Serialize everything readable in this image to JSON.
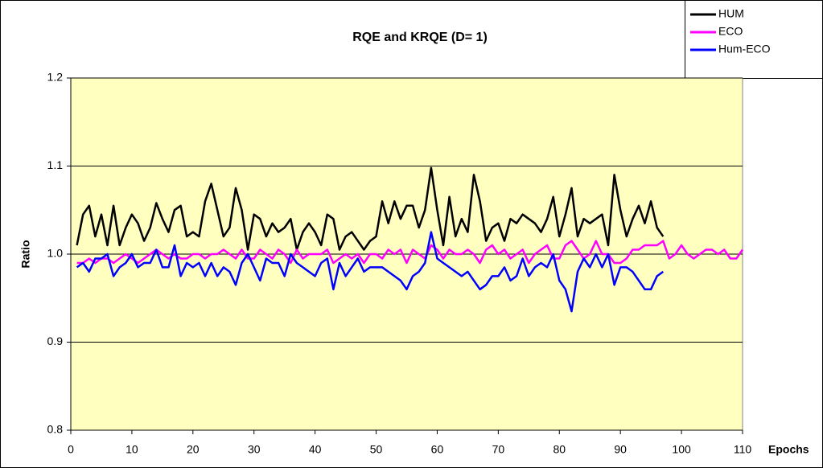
{
  "chart_data": {
    "type": "line",
    "title": "RQE and KRQE  (D= 1)",
    "x_label": "Epochs",
    "y_label": "Ratio",
    "x": [
      1,
      2,
      3,
      4,
      5,
      6,
      7,
      8,
      9,
      10,
      11,
      12,
      13,
      14,
      15,
      16,
      17,
      18,
      19,
      20,
      21,
      22,
      23,
      24,
      25,
      26,
      27,
      28,
      29,
      30,
      31,
      32,
      33,
      34,
      35,
      36,
      37,
      38,
      39,
      40,
      41,
      42,
      43,
      44,
      45,
      46,
      47,
      48,
      49,
      50,
      51,
      52,
      53,
      54,
      55,
      56,
      57,
      58,
      59,
      60,
      61,
      62,
      63,
      64,
      65,
      66,
      67,
      68,
      69,
      70,
      71,
      72,
      73,
      74,
      75,
      76,
      77,
      78,
      79,
      80,
      81,
      82,
      83,
      84,
      85,
      86,
      87,
      88,
      89,
      90,
      91,
      92,
      93,
      94,
      95,
      96,
      97,
      98,
      99,
      100,
      101,
      102,
      103,
      104,
      105,
      106,
      107,
      108,
      109,
      110
    ],
    "series": [
      {
        "name": "HUM",
        "color": "#000000",
        "values": [
          1.01,
          1.045,
          1.055,
          1.02,
          1.045,
          1.01,
          1.055,
          1.01,
          1.03,
          1.045,
          1.035,
          1.015,
          1.03,
          1.058,
          1.04,
          1.025,
          1.05,
          1.055,
          1.02,
          1.025,
          1.02,
          1.06,
          1.08,
          1.05,
          1.02,
          1.03,
          1.075,
          1.05,
          1.005,
          1.045,
          1.04,
          1.02,
          1.035,
          1.025,
          1.03,
          1.04,
          1.005,
          1.025,
          1.035,
          1.025,
          1.01,
          1.045,
          1.04,
          1.005,
          1.02,
          1.025,
          1.015,
          1.005,
          1.015,
          1.02,
          1.06,
          1.035,
          1.06,
          1.04,
          1.055,
          1.055,
          1.03,
          1.05,
          1.098,
          1.05,
          1.01,
          1.065,
          1.02,
          1.04,
          1.025,
          1.09,
          1.06,
          1.015,
          1.03,
          1.035,
          1.015,
          1.04,
          1.035,
          1.045,
          1.04,
          1.035,
          1.025,
          1.04,
          1.065,
          1.02,
          1.045,
          1.075,
          1.02,
          1.04,
          1.035,
          1.04,
          1.045,
          1.01,
          1.09,
          1.05,
          1.02,
          1.04,
          1.055,
          1.035,
          1.06,
          1.03,
          1.02,
          null,
          null,
          null,
          null,
          null,
          null,
          null,
          null,
          null,
          null,
          null,
          null,
          null
        ]
      },
      {
        "name": "ECO",
        "color": "#ff00ff",
        "values": [
          0.99,
          0.99,
          0.995,
          0.99,
          0.995,
          0.995,
          0.99,
          0.995,
          1.0,
          0.995,
          0.99,
          0.995,
          1.0,
          1.005,
          1.0,
          0.995,
          1.0,
          0.995,
          0.995,
          1.0,
          1.0,
          0.995,
          1.0,
          1.0,
          1.005,
          1.0,
          0.995,
          1.005,
          0.995,
          0.995,
          1.005,
          1.0,
          0.995,
          1.005,
          1.0,
          0.99,
          1.005,
          0.995,
          1.0,
          1.0,
          1.0,
          1.005,
          0.99,
          0.995,
          1.0,
          0.995,
          1.0,
          0.99,
          1.0,
          1.0,
          0.995,
          1.005,
          1.0,
          1.005,
          0.99,
          1.005,
          1.0,
          0.995,
          1.01,
          1.005,
          0.995,
          1.005,
          1.0,
          1.0,
          1.005,
          1.0,
          0.99,
          1.005,
          1.01,
          1.0,
          1.005,
          0.995,
          1.0,
          1.005,
          0.99,
          1.0,
          1.005,
          1.01,
          0.995,
          0.995,
          1.01,
          1.015,
          1.005,
          0.995,
          1.0,
          1.015,
          1.0,
          1.0,
          0.99,
          0.99,
          0.995,
          1.005,
          1.005,
          1.01,
          1.01,
          1.01,
          1.015,
          0.995,
          1.0,
          1.01,
          1.0,
          0.995,
          1.0,
          1.005,
          1.005,
          1.0,
          1.005,
          0.995,
          0.995,
          1.005
        ]
      },
      {
        "name": "Hum-ECO",
        "color": "#0000ff",
        "values": [
          0.985,
          0.99,
          0.98,
          0.995,
          0.995,
          1.0,
          0.975,
          0.985,
          0.99,
          1.0,
          0.985,
          0.99,
          0.99,
          1.005,
          0.985,
          0.985,
          1.01,
          0.975,
          0.99,
          0.985,
          0.99,
          0.975,
          0.99,
          0.975,
          0.985,
          0.98,
          0.965,
          0.99,
          1.0,
          0.985,
          0.97,
          0.995,
          0.99,
          0.99,
          0.975,
          1.0,
          0.99,
          0.985,
          0.98,
          0.975,
          0.99,
          0.995,
          0.96,
          0.99,
          0.975,
          0.985,
          0.995,
          0.98,
          0.985,
          0.985,
          0.985,
          0.98,
          0.975,
          0.97,
          0.96,
          0.975,
          0.98,
          0.99,
          1.025,
          0.995,
          0.99,
          0.985,
          0.98,
          0.975,
          0.98,
          0.97,
          0.96,
          0.965,
          0.975,
          0.975,
          0.985,
          0.97,
          0.975,
          0.995,
          0.975,
          0.985,
          0.99,
          0.985,
          1.0,
          0.97,
          0.96,
          0.935,
          0.98,
          0.995,
          0.985,
          1.0,
          0.985,
          1.0,
          0.965,
          0.985,
          0.985,
          0.98,
          0.97,
          0.96,
          0.96,
          0.975,
          0.98,
          null,
          null,
          null,
          null,
          null,
          null,
          null,
          null,
          null,
          null,
          null,
          null,
          null
        ]
      }
    ],
    "xlim": [
      0,
      110
    ],
    "xticks": [
      0,
      10,
      20,
      30,
      40,
      50,
      60,
      70,
      80,
      90,
      100,
      110
    ],
    "ylim": [
      0.8,
      1.2
    ],
    "yticks": [
      0.8,
      0.9,
      {
        "value": 1,
        "label": "1.0"
      },
      1.1,
      1.2
    ],
    "grid": true,
    "legend": "top-right",
    "plot_background": "#ffffc0"
  }
}
